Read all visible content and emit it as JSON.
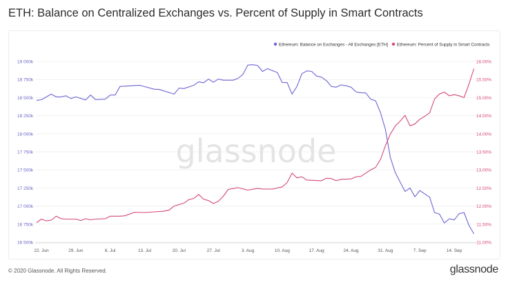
{
  "title": "ETH: Balance on Centralized Exchanges vs. Percent of Supply in Smart Contracts",
  "footer": {
    "copyright": "© 2020 Glassnode. All Rights Reserved.",
    "logo": "glassnode"
  },
  "watermark": "glassnode",
  "chart_data": {
    "type": "line",
    "title": "ETH: Balance on Centralized Exchanges vs. Percent of Supply in Smart Contracts",
    "legend_position": "top-right",
    "grid": true,
    "x_ticks": [
      {
        "date": "2020-06-22",
        "label": "22. Jun"
      },
      {
        "date": "2020-06-29",
        "label": "29. Jun"
      },
      {
        "date": "2020-07-06",
        "label": "6. Jul"
      },
      {
        "date": "2020-07-13",
        "label": "13. Jul"
      },
      {
        "date": "2020-07-20",
        "label": "20. Jul"
      },
      {
        "date": "2020-07-27",
        "label": "27. Jul"
      },
      {
        "date": "2020-08-03",
        "label": "3. Aug"
      },
      {
        "date": "2020-08-10",
        "label": "10. Aug"
      },
      {
        "date": "2020-08-17",
        "label": "17. Aug"
      },
      {
        "date": "2020-08-24",
        "label": "24. Aug"
      },
      {
        "date": "2020-08-31",
        "label": "31. Aug"
      },
      {
        "date": "2020-09-07",
        "label": "7. Sep"
      },
      {
        "date": "2020-09-14",
        "label": "14. Sep"
      }
    ],
    "y_left": {
      "range": [
        16500,
        19000
      ],
      "unit": "k ETH",
      "ticks": [
        "16 500k",
        "16 750k",
        "17 000k",
        "17 250k",
        "17 500k",
        "17 750k",
        "18 000k",
        "18 250k",
        "18 500k",
        "18 750k",
        "19 000k"
      ]
    },
    "y_right": {
      "range": [
        11,
        16
      ],
      "unit": "%",
      "ticks": [
        "11.00%",
        "11.50%",
        "12.00%",
        "12.50%",
        "13.00%",
        "13.50%",
        "14.00%",
        "14.50%",
        "15.00%",
        "15.50%",
        "16.00%"
      ]
    },
    "series": [
      {
        "name": "Ethereum: Balance on Exchanges - All Exchanges [ETH]",
        "axis": "left",
        "color": "#6a63d4",
        "points": [
          [
            "2020-06-21",
            18462
          ],
          [
            "2020-06-22",
            18470
          ],
          [
            "2020-06-24",
            18548
          ],
          [
            "2020-06-25",
            18510
          ],
          [
            "2020-06-26",
            18510
          ],
          [
            "2020-06-27",
            18525
          ],
          [
            "2020-06-28",
            18487
          ],
          [
            "2020-06-29",
            18510
          ],
          [
            "2020-07-01",
            18468
          ],
          [
            "2020-07-02",
            18535
          ],
          [
            "2020-07-03",
            18472
          ],
          [
            "2020-07-05",
            18478
          ],
          [
            "2020-07-06",
            18535
          ],
          [
            "2020-07-07",
            18535
          ],
          [
            "2020-07-08",
            18654
          ],
          [
            "2020-07-12",
            18670
          ],
          [
            "2020-07-15",
            18615
          ],
          [
            "2020-07-16",
            18612
          ],
          [
            "2020-07-19",
            18548
          ],
          [
            "2020-07-20",
            18631
          ],
          [
            "2020-07-21",
            18625
          ],
          [
            "2020-07-23",
            18670
          ],
          [
            "2020-07-24",
            18718
          ],
          [
            "2020-07-25",
            18705
          ],
          [
            "2020-07-26",
            18756
          ],
          [
            "2020-07-27",
            18712
          ],
          [
            "2020-07-28",
            18756
          ],
          [
            "2020-07-29",
            18740
          ],
          [
            "2020-07-31",
            18740
          ],
          [
            "2020-08-01",
            18766
          ],
          [
            "2020-08-02",
            18820
          ],
          [
            "2020-08-03",
            18949
          ],
          [
            "2020-08-04",
            18955
          ],
          [
            "2020-08-05",
            18943
          ],
          [
            "2020-08-06",
            18862
          ],
          [
            "2020-08-07",
            18900
          ],
          [
            "2020-08-09",
            18846
          ],
          [
            "2020-08-10",
            18708
          ],
          [
            "2020-08-11",
            18708
          ],
          [
            "2020-08-12",
            18548
          ],
          [
            "2020-08-13",
            18654
          ],
          [
            "2020-08-14",
            18830
          ],
          [
            "2020-08-15",
            18869
          ],
          [
            "2020-08-16",
            18862
          ],
          [
            "2020-08-17",
            18798
          ],
          [
            "2020-08-18",
            18782
          ],
          [
            "2020-08-19",
            18734
          ],
          [
            "2020-08-20",
            18654
          ],
          [
            "2020-08-21",
            18644
          ],
          [
            "2020-08-22",
            18676
          ],
          [
            "2020-08-23",
            18663
          ],
          [
            "2020-08-24",
            18644
          ],
          [
            "2020-08-25",
            18580
          ],
          [
            "2020-08-26",
            18567
          ],
          [
            "2020-08-27",
            18564
          ],
          [
            "2020-08-28",
            18478
          ],
          [
            "2020-08-29",
            18455
          ],
          [
            "2020-08-30",
            18290
          ],
          [
            "2020-08-31",
            18060
          ],
          [
            "2020-09-01",
            17673
          ],
          [
            "2020-09-02",
            17465
          ],
          [
            "2020-09-03",
            17330
          ],
          [
            "2020-09-04",
            17202
          ],
          [
            "2020-09-05",
            17250
          ],
          [
            "2020-09-06",
            17128
          ],
          [
            "2020-09-07",
            17215
          ],
          [
            "2020-09-09",
            17122
          ],
          [
            "2020-09-10",
            16910
          ],
          [
            "2020-09-11",
            16888
          ],
          [
            "2020-09-12",
            16766
          ],
          [
            "2020-09-13",
            16824
          ],
          [
            "2020-09-14",
            16808
          ],
          [
            "2020-09-15",
            16894
          ],
          [
            "2020-09-16",
            16910
          ],
          [
            "2020-09-17",
            16734
          ],
          [
            "2020-09-18",
            16615
          ]
        ]
      },
      {
        "name": "Ethereum: Percent of Supply in Smart Contracts",
        "axis": "right",
        "color": "#d4467a",
        "points": [
          [
            "2020-06-21",
            11.54
          ],
          [
            "2020-06-22",
            11.64
          ],
          [
            "2020-06-23",
            11.59
          ],
          [
            "2020-06-24",
            11.61
          ],
          [
            "2020-06-25",
            11.72
          ],
          [
            "2020-06-26",
            11.65
          ],
          [
            "2020-06-27",
            11.64
          ],
          [
            "2020-06-29",
            11.64
          ],
          [
            "2020-06-30",
            11.6
          ],
          [
            "2020-07-01",
            11.65
          ],
          [
            "2020-07-02",
            11.62
          ],
          [
            "2020-07-03",
            11.64
          ],
          [
            "2020-07-05",
            11.65
          ],
          [
            "2020-07-06",
            11.72
          ],
          [
            "2020-07-08",
            11.72
          ],
          [
            "2020-07-09",
            11.73
          ],
          [
            "2020-07-11",
            11.83
          ],
          [
            "2020-07-13",
            11.82
          ],
          [
            "2020-07-15",
            11.84
          ],
          [
            "2020-07-17",
            11.86
          ],
          [
            "2020-07-18",
            11.89
          ],
          [
            "2020-07-19",
            12.0
          ],
          [
            "2020-07-21",
            12.08
          ],
          [
            "2020-07-22",
            12.18
          ],
          [
            "2020-07-23",
            12.21
          ],
          [
            "2020-07-24",
            12.32
          ],
          [
            "2020-07-25",
            12.19
          ],
          [
            "2020-07-26",
            12.15
          ],
          [
            "2020-07-27",
            12.07
          ],
          [
            "2020-07-28",
            12.13
          ],
          [
            "2020-07-29",
            12.27
          ],
          [
            "2020-07-30",
            12.46
          ],
          [
            "2020-08-01",
            12.51
          ],
          [
            "2020-08-03",
            12.44
          ],
          [
            "2020-08-05",
            12.49
          ],
          [
            "2020-08-06",
            12.47
          ],
          [
            "2020-08-08",
            12.47
          ],
          [
            "2020-08-10",
            12.53
          ],
          [
            "2020-08-11",
            12.65
          ],
          [
            "2020-08-12",
            12.91
          ],
          [
            "2020-08-13",
            12.78
          ],
          [
            "2020-08-14",
            12.81
          ],
          [
            "2020-08-15",
            12.72
          ],
          [
            "2020-08-18",
            12.7
          ],
          [
            "2020-08-19",
            12.77
          ],
          [
            "2020-08-20",
            12.76
          ],
          [
            "2020-08-21",
            12.7
          ],
          [
            "2020-08-22",
            12.74
          ],
          [
            "2020-08-24",
            12.75
          ],
          [
            "2020-08-25",
            12.81
          ],
          [
            "2020-08-26",
            12.82
          ],
          [
            "2020-08-27",
            12.91
          ],
          [
            "2020-08-28",
            13.0
          ],
          [
            "2020-08-29",
            13.07
          ],
          [
            "2020-08-30",
            13.29
          ],
          [
            "2020-08-31",
            13.67
          ],
          [
            "2020-09-01",
            13.99
          ],
          [
            "2020-09-02",
            14.21
          ],
          [
            "2020-09-03",
            14.35
          ],
          [
            "2020-09-04",
            14.51
          ],
          [
            "2020-09-05",
            14.22
          ],
          [
            "2020-09-06",
            14.27
          ],
          [
            "2020-09-07",
            14.4
          ],
          [
            "2020-09-08",
            14.48
          ],
          [
            "2020-09-09",
            14.58
          ],
          [
            "2020-09-10",
            14.96
          ],
          [
            "2020-09-11",
            15.1
          ],
          [
            "2020-09-12",
            15.15
          ],
          [
            "2020-09-13",
            15.05
          ],
          [
            "2020-09-14",
            15.08
          ],
          [
            "2020-09-15",
            15.05
          ],
          [
            "2020-09-16",
            15.0
          ],
          [
            "2020-09-17",
            15.37
          ],
          [
            "2020-09-18",
            15.8
          ]
        ]
      }
    ]
  }
}
